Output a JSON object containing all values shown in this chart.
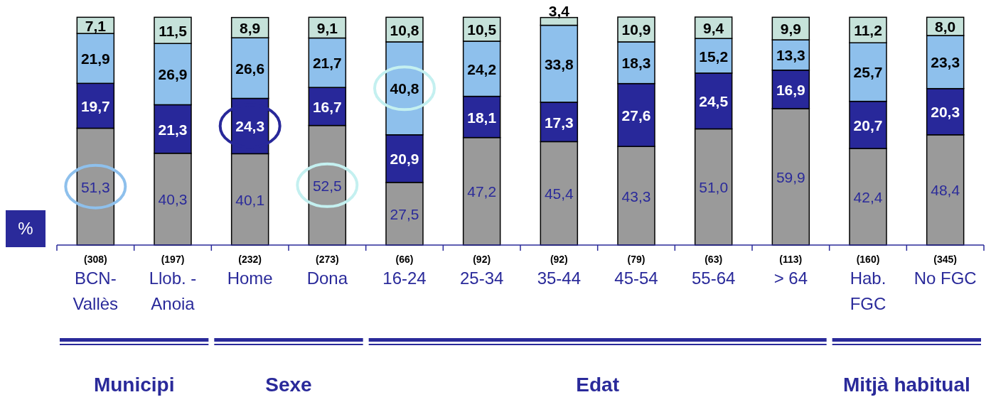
{
  "chart_data": {
    "type": "bar",
    "stacked": true,
    "ylabel": "%",
    "categories": [
      "BCN-Vallès",
      "Llob. - Anoia",
      "Home",
      "Dona",
      "16-24",
      "25-34",
      "35-44",
      "45-54",
      "55-64",
      "> 64",
      "Hab. FGC",
      "No FGC"
    ],
    "series": [
      {
        "color": "#9a9a9a",
        "values": [
          51.3,
          40.3,
          40.1,
          52.5,
          27.5,
          47.2,
          45.4,
          43.3,
          51.0,
          59.9,
          42.4,
          48.4
        ],
        "value_labels": [
          "51,3",
          "40,3",
          "40,1",
          "52,5",
          "27,5",
          "47,2",
          "45,4",
          "43,3",
          "51,0",
          "59,9",
          "42,4",
          "48,4"
        ]
      },
      {
        "color": "#28289a",
        "values": [
          19.7,
          21.3,
          24.3,
          16.7,
          20.9,
          18.1,
          17.3,
          27.6,
          24.5,
          16.9,
          20.7,
          20.3
        ],
        "value_labels": [
          "19,7",
          "21,3",
          "24,3",
          "16,7",
          "20,9",
          "18,1",
          "17,3",
          "27,6",
          "24,5",
          "16,9",
          "20,7",
          "20,3"
        ]
      },
      {
        "color": "#8ec0ec",
        "values": [
          21.9,
          26.9,
          26.6,
          21.7,
          40.8,
          24.2,
          33.8,
          18.3,
          15.2,
          13.3,
          25.7,
          23.3
        ],
        "value_labels": [
          "21,9",
          "26,9",
          "26,6",
          "21,7",
          "40,8",
          "24,2",
          "33,8",
          "18,3",
          "15,2",
          "13,3",
          "25,7",
          "23,3"
        ]
      },
      {
        "color": "#c6e2da",
        "values": [
          7.1,
          11.5,
          8.9,
          9.1,
          10.8,
          10.5,
          3.4,
          10.9,
          9.4,
          9.9,
          11.2,
          8.0
        ],
        "value_labels": [
          "7,1",
          "11,5",
          "8,9",
          "9,1",
          "10,8",
          "10,5",
          "3,4",
          "10,9",
          "9,4",
          "9,9",
          "11,2",
          "8,0"
        ]
      }
    ],
    "annotations": [
      "(308)",
      "(197)",
      "(232)",
      "(273)",
      "(66)",
      "(92)",
      "(92)",
      "(79)",
      "(63)",
      "(113)",
      "(160)",
      "(345)",
      "Municipi",
      "Sexe",
      "Edat",
      "Mitjà habitual"
    ]
  }
}
